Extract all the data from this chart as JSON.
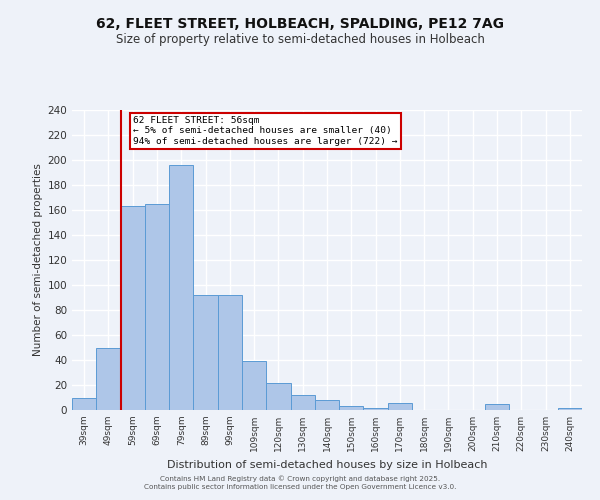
{
  "title1": "62, FLEET STREET, HOLBEACH, SPALDING, PE12 7AG",
  "title2": "Size of property relative to semi-detached houses in Holbeach",
  "xlabel": "Distribution of semi-detached houses by size in Holbeach",
  "ylabel": "Number of semi-detached properties",
  "categories": [
    "39sqm",
    "49sqm",
    "59sqm",
    "69sqm",
    "79sqm",
    "89sqm",
    "99sqm",
    "109sqm",
    "120sqm",
    "130sqm",
    "140sqm",
    "150sqm",
    "160sqm",
    "170sqm",
    "180sqm",
    "190sqm",
    "200sqm",
    "210sqm",
    "220sqm",
    "230sqm",
    "240sqm"
  ],
  "values": [
    10,
    50,
    163,
    165,
    196,
    92,
    92,
    39,
    22,
    12,
    8,
    3,
    2,
    6,
    0,
    0,
    0,
    5,
    0,
    0,
    2
  ],
  "bar_color": "#aec6e8",
  "bar_edge_color": "#5b9bd5",
  "annotation_title": "62 FLEET STREET: 56sqm",
  "annotation_line1": "← 5% of semi-detached houses are smaller (40)",
  "annotation_line2": "94% of semi-detached houses are larger (722) →",
  "annotation_box_color": "#ffffff",
  "annotation_box_edge_color": "#cc0000",
  "vline_color": "#cc0000",
  "ylim": [
    0,
    240
  ],
  "yticks": [
    0,
    20,
    40,
    60,
    80,
    100,
    120,
    140,
    160,
    180,
    200,
    220,
    240
  ],
  "footer1": "Contains HM Land Registry data © Crown copyright and database right 2025.",
  "footer2": "Contains public sector information licensed under the Open Government Licence v3.0.",
  "bg_color": "#eef2f9",
  "grid_color": "#ffffff",
  "title1_fontsize": 10,
  "title2_fontsize": 8.5
}
